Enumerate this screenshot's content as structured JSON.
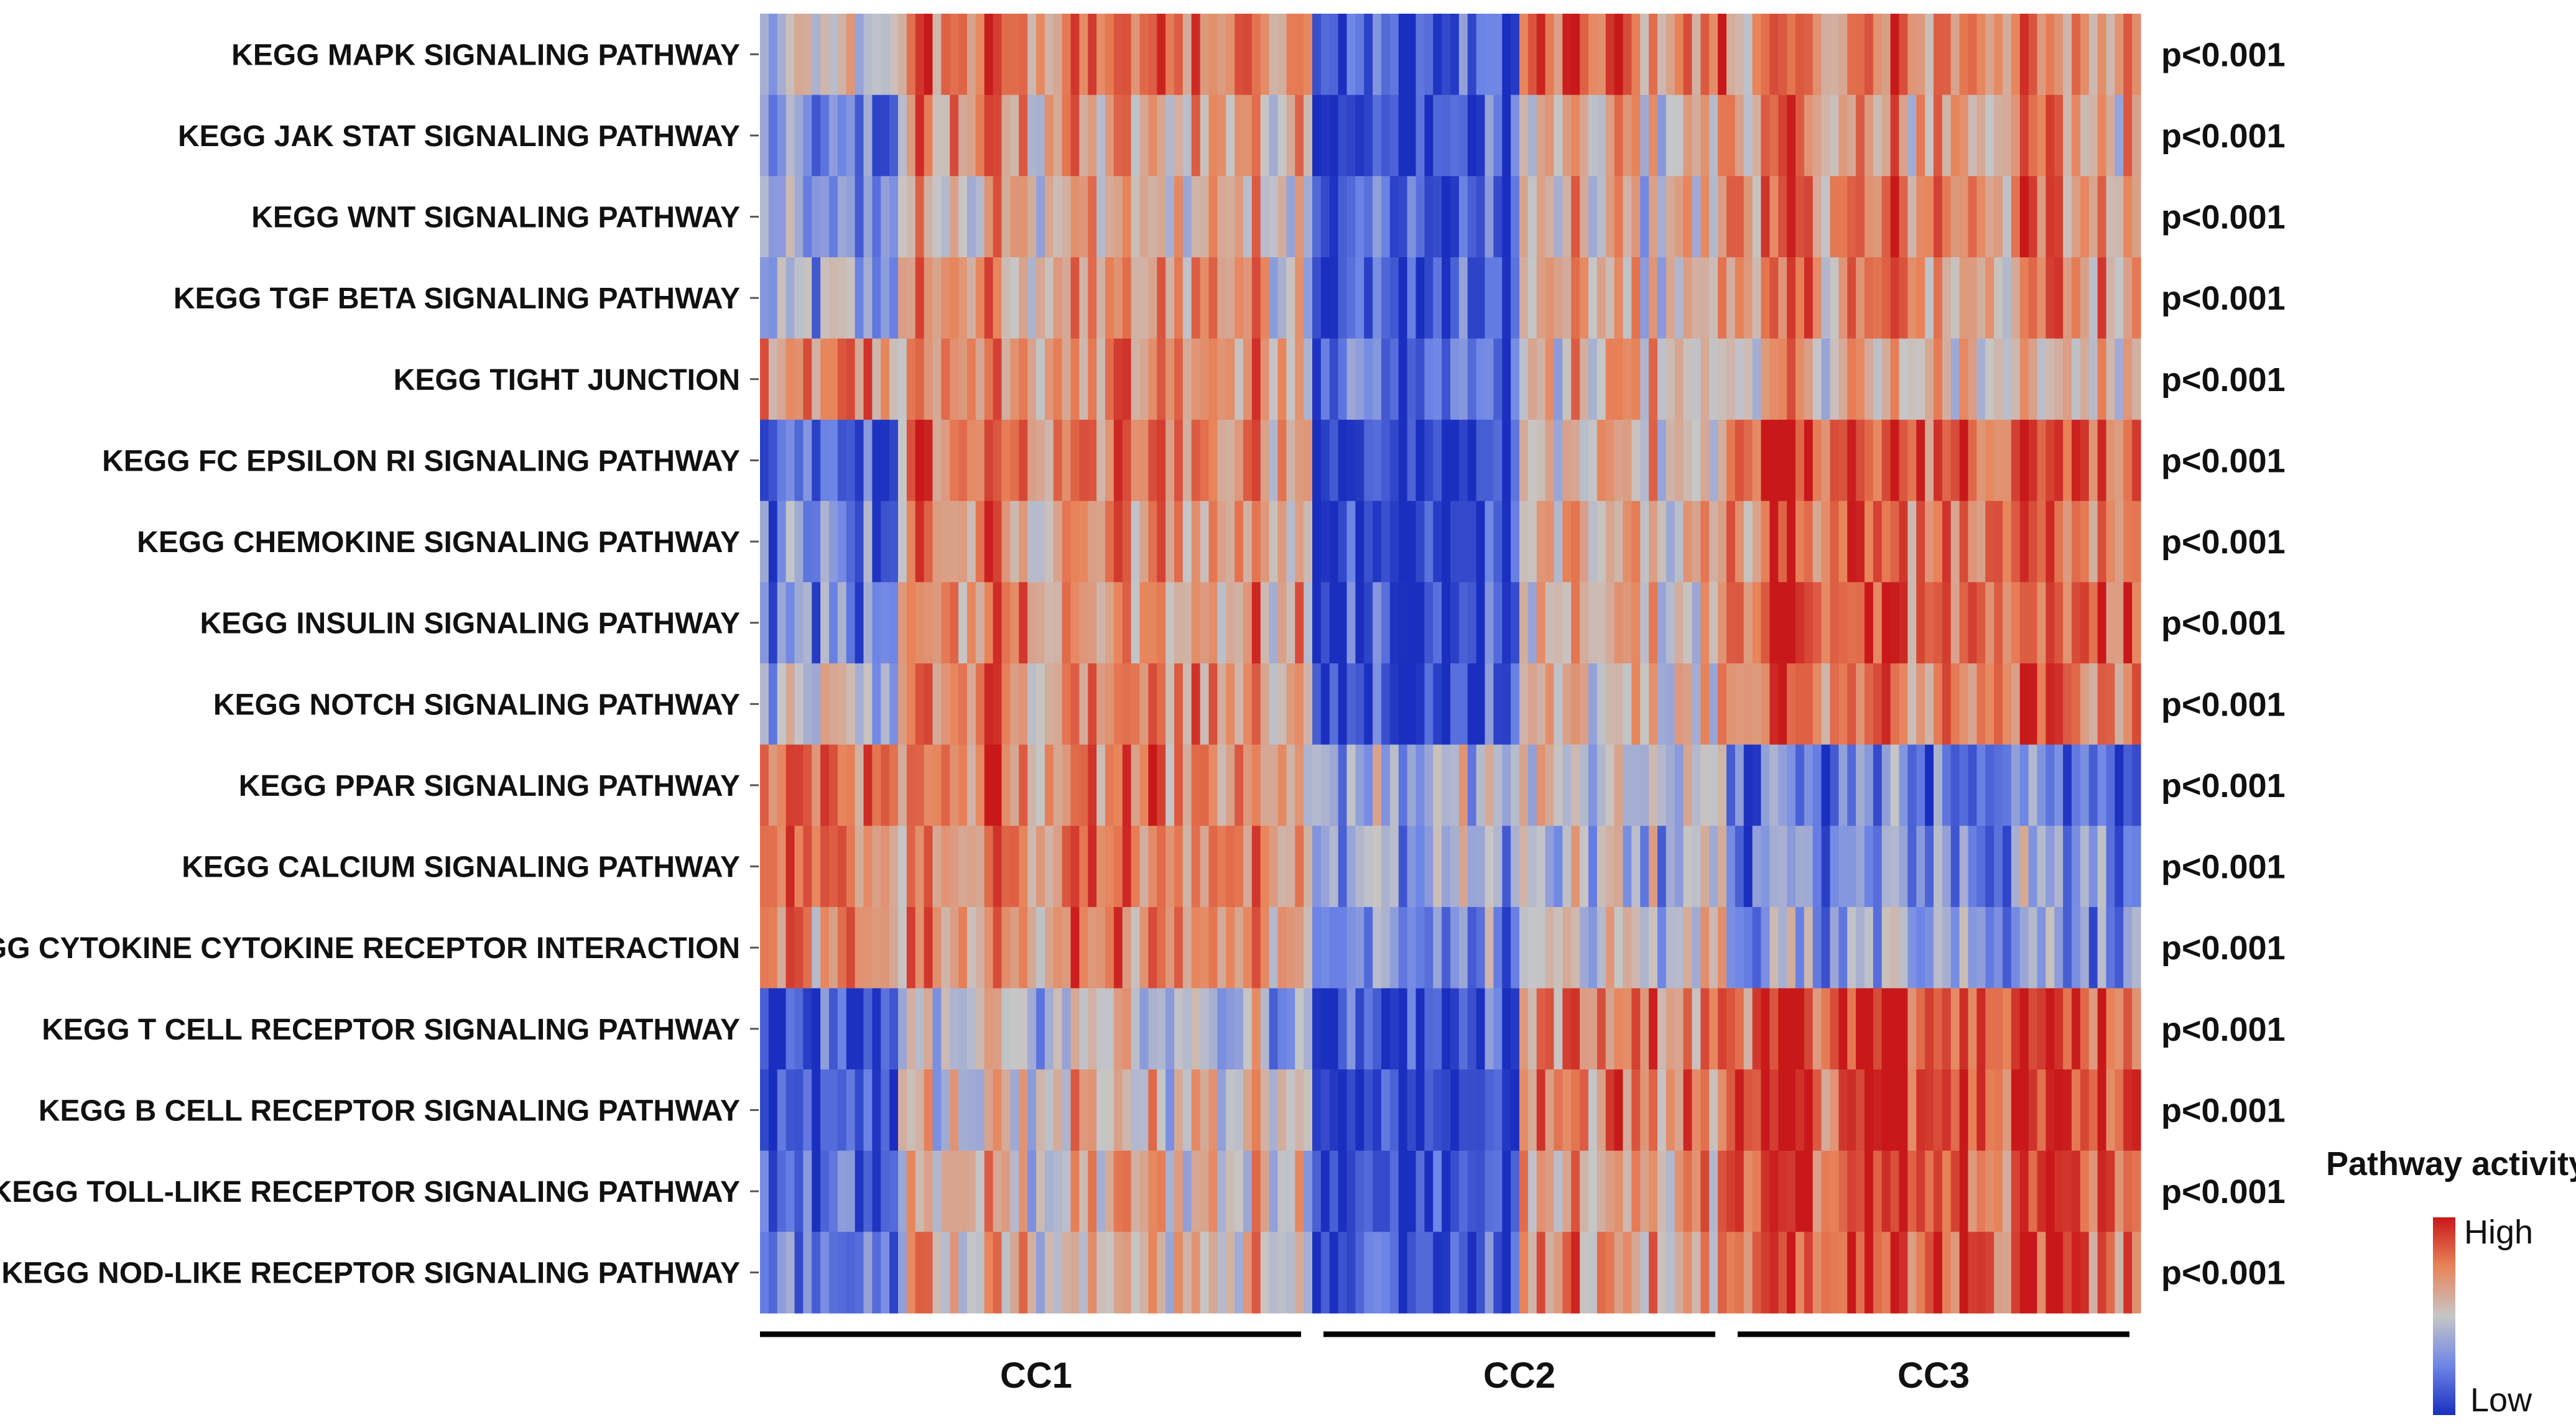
{
  "chart_data": {
    "type": "heatmap",
    "title": "",
    "rows": [
      {
        "label": "KEGG MAPK SIGNALING PATHWAY",
        "pvalue": "p<0.001",
        "profile": [
          -0.05,
          0.55,
          -0.8,
          0.55,
          0.45
        ]
      },
      {
        "label": "KEGG JAK STAT SIGNALING PATHWAY",
        "pvalue": "p<0.001",
        "profile": [
          -0.65,
          0.35,
          -0.8,
          0.15,
          0.35
        ]
      },
      {
        "label": "KEGG WNT SIGNALING PATHWAY",
        "pvalue": "p<0.001",
        "profile": [
          -0.4,
          0.2,
          -0.75,
          0.1,
          0.45
        ]
      },
      {
        "label": "KEGG TGF BETA SIGNALING PATHWAY",
        "pvalue": "p<0.001",
        "profile": [
          -0.3,
          0.3,
          -0.7,
          0.2,
          0.45
        ]
      },
      {
        "label": "KEGG TIGHT JUNCTION",
        "pvalue": "p<0.001",
        "profile": [
          0.4,
          0.4,
          -0.55,
          0.1,
          0.15
        ]
      },
      {
        "label": "KEGG FC EPSILON RI SIGNALING PATHWAY",
        "pvalue": "p<0.001",
        "profile": [
          -0.75,
          0.5,
          -0.95,
          0.15,
          0.7
        ]
      },
      {
        "label": "KEGG CHEMOKINE SIGNALING PATHWAY",
        "pvalue": "p<0.001",
        "profile": [
          -0.6,
          0.4,
          -0.9,
          0.15,
          0.65
        ]
      },
      {
        "label": "KEGG INSULIN SIGNALING PATHWAY",
        "pvalue": "p<0.001",
        "profile": [
          -0.55,
          0.35,
          -0.85,
          0.1,
          0.65
        ]
      },
      {
        "label": "KEGG NOTCH SIGNALING PATHWAY",
        "pvalue": "p<0.001",
        "profile": [
          -0.2,
          0.45,
          -0.85,
          0.15,
          0.55
        ]
      },
      {
        "label": "KEGG PPAR SIGNALING PATHWAY",
        "pvalue": "p<0.001",
        "profile": [
          0.5,
          0.5,
          -0.2,
          -0.1,
          -0.55
        ]
      },
      {
        "label": "KEGG CALCIUM SIGNALING PATHWAY",
        "pvalue": "p<0.001",
        "profile": [
          0.5,
          0.45,
          -0.25,
          -0.2,
          -0.4
        ]
      },
      {
        "label": "KEGG CYTOKINE CYTOKINE RECEPTOR INTERACTION",
        "pvalue": "p<0.001",
        "profile": [
          0.4,
          0.4,
          -0.4,
          0.0,
          -0.35
        ]
      },
      {
        "label": "KEGG T CELL RECEPTOR SIGNALING PATHWAY",
        "pvalue": "p<0.001",
        "profile": [
          -0.85,
          -0.1,
          -0.8,
          0.4,
          0.75
        ]
      },
      {
        "label": "KEGG B CELL RECEPTOR SIGNALING PATHWAY",
        "pvalue": "p<0.001",
        "profile": [
          -0.9,
          0.1,
          -0.9,
          0.45,
          0.8
        ]
      },
      {
        "label": "KEGG TOLL-LIKE RECEPTOR SIGNALING PATHWAY",
        "pvalue": "p<0.001",
        "profile": [
          -0.75,
          0.1,
          -0.85,
          0.3,
          0.7
        ]
      },
      {
        "label": "KEGG NOD-LIKE RECEPTOR SIGNALING PATHWAY",
        "pvalue": "p<0.001",
        "profile": [
          -0.7,
          0.15,
          -0.8,
          0.3,
          0.7
        ]
      }
    ],
    "column_segments": [
      {
        "name": "CC1",
        "columns": 64,
        "profile_parts": [
          0,
          1
        ]
      },
      {
        "name": "CC2",
        "columns": 48,
        "profile_parts": [
          2,
          3
        ]
      },
      {
        "name": "CC3",
        "columns": 48,
        "profile_parts": [
          4
        ]
      }
    ],
    "segment_part_columns": [
      16,
      48,
      24,
      24,
      48
    ],
    "value_range": [
      -1,
      1
    ],
    "noise_seed": 12345,
    "colors": {
      "low": "#1a2fbf",
      "mid": "#c6c6c6",
      "high": "#c8181a"
    },
    "legend": {
      "title": "Pathway activity",
      "high_label": "High",
      "low_label": "Low"
    }
  }
}
